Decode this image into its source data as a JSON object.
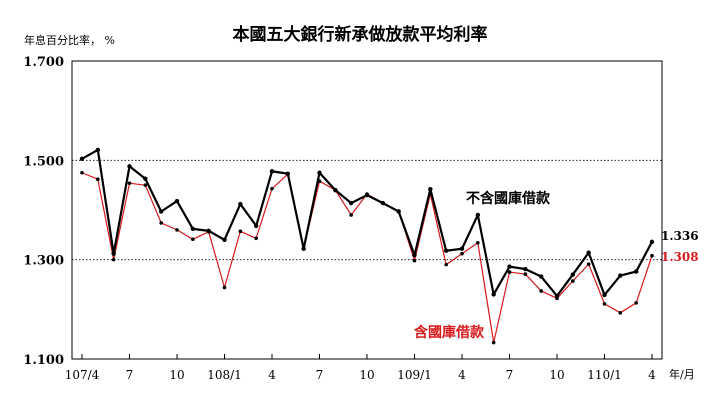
{
  "chart_data": {
    "type": "line",
    "title": "本國五大銀行新承做放款平均利率",
    "ylabel": "年息百分比率， %",
    "xlabel": "年/月",
    "ylim": [
      1.1,
      1.7
    ],
    "yticks": [
      "1.700",
      "1.500",
      "1.300",
      "1.100"
    ],
    "ytick_values": [
      1.7,
      1.5,
      1.3,
      1.1
    ],
    "x_tick_labels": [
      {
        "label": "107/4",
        "index": 0
      },
      {
        "label": "7",
        "index": 3
      },
      {
        "label": "10",
        "index": 6
      },
      {
        "label": "108/1",
        "index": 9
      },
      {
        "label": "4",
        "index": 12
      },
      {
        "label": "7",
        "index": 15
      },
      {
        "label": "10",
        "index": 18
      },
      {
        "label": "109/1",
        "index": 21
      },
      {
        "label": "4",
        "index": 24
      },
      {
        "label": "7",
        "index": 27
      },
      {
        "label": "10",
        "index": 30
      },
      {
        "label": "110/1",
        "index": 33
      },
      {
        "label": "4",
        "index": 36
      }
    ],
    "grid": "horizontal dotted",
    "series": [
      {
        "name": "不含國庫借款",
        "color": "#000000",
        "end_label": "1.336",
        "values": [
          1.503,
          1.521,
          1.312,
          1.488,
          1.463,
          1.397,
          1.418,
          1.362,
          1.358,
          1.34,
          1.412,
          1.368,
          1.478,
          1.473,
          1.322,
          1.475,
          1.44,
          1.414,
          1.43,
          1.414,
          1.397,
          1.309,
          1.442,
          1.318,
          1.322,
          1.39,
          1.23,
          1.286,
          1.281,
          1.266,
          1.227,
          1.27,
          1.314,
          1.229,
          1.268,
          1.276,
          1.336
        ]
      },
      {
        "name": "含國庫借款",
        "color": "#d7191c",
        "end_label": "1.308",
        "values": [
          1.475,
          1.462,
          1.3,
          1.454,
          1.45,
          1.374,
          1.36,
          1.341,
          1.356,
          1.244,
          1.357,
          1.343,
          1.443,
          1.472,
          1.322,
          1.458,
          1.44,
          1.39,
          1.432,
          1.414,
          1.398,
          1.298,
          1.432,
          1.29,
          1.312,
          1.334,
          1.133,
          1.275,
          1.271,
          1.237,
          1.222,
          1.257,
          1.291,
          1.211,
          1.193,
          1.213,
          1.308
        ]
      }
    ]
  }
}
